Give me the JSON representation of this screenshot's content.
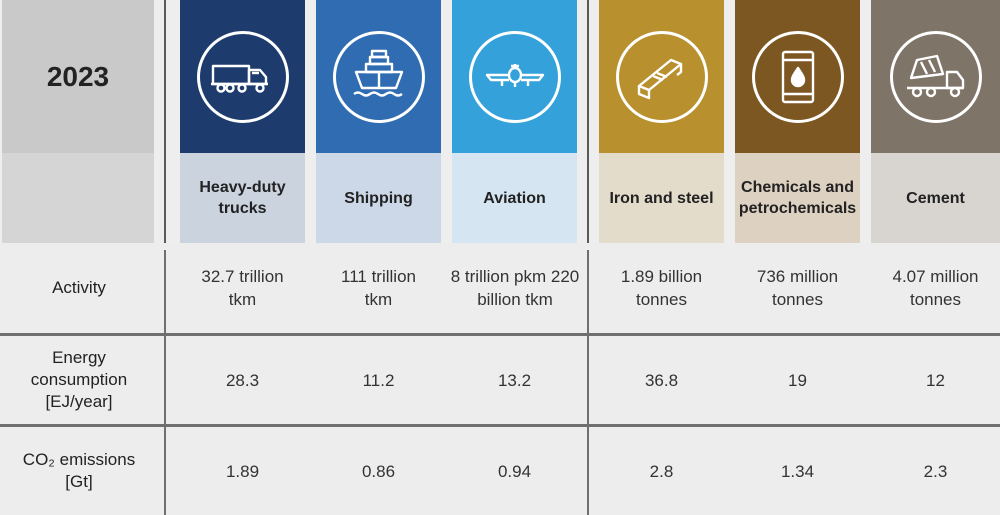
{
  "year": "2023",
  "colors": {
    "trucks": "#1e3b6e",
    "shipping": "#2f6cb2",
    "aviation": "#35a1da",
    "steel": "#b9902e",
    "chemicals": "#7d5722",
    "cement": "#7f7468",
    "trucks_light": "#cbd3df",
    "shipping_light": "#ccd8e8",
    "aviation_light": "#d5e6f2",
    "steel_light": "#e4dccb",
    "chemicals_light": "#ddd1c1",
    "cement_light": "#d8d5d1"
  },
  "sectors": [
    {
      "label": "Heavy-duty trucks",
      "icon": "truck-icon"
    },
    {
      "label": "Shipping",
      "icon": "ship-icon"
    },
    {
      "label": "Aviation",
      "icon": "airplane-icon"
    },
    {
      "label": "Iron and steel",
      "icon": "steel-beam-icon"
    },
    {
      "label": "Chemicals and petrochemicals",
      "icon": "oil-barrel-icon"
    },
    {
      "label": "Cement",
      "icon": "cement-mixer-icon"
    }
  ],
  "rows": [
    {
      "label": "Activity",
      "values": [
        "32.7 trillion tkm",
        "111 trillion tkm",
        "8 trillion pkm 220 billion tkm",
        "1.89 billion tonnes",
        "736 million tonnes",
        "4.07 million tonnes"
      ]
    },
    {
      "label": "Energy consumption [EJ/year]",
      "values": [
        "28.3",
        "11.2",
        "13.2",
        "36.8",
        "19",
        "12"
      ]
    },
    {
      "label": "CO₂ emissions [Gt]",
      "values": [
        "1.89",
        "0.86",
        "0.94",
        "2.8",
        "1.34",
        "2.3"
      ]
    }
  ]
}
